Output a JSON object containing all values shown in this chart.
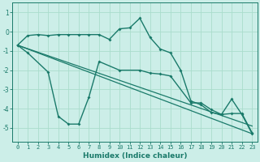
{
  "background_color": "#cceee8",
  "grid_color": "#aaddcc",
  "line_color": "#1a7a6a",
  "xlabel": "Humidex (Indice chaleur)",
  "xlim": [
    -0.5,
    23.5
  ],
  "ylim": [
    -5.7,
    1.5
  ],
  "yticks": [
    -5,
    -4,
    -3,
    -2,
    -1,
    0,
    1
  ],
  "xticks": [
    0,
    1,
    2,
    3,
    4,
    5,
    6,
    7,
    8,
    9,
    10,
    11,
    12,
    13,
    14,
    15,
    16,
    17,
    18,
    19,
    20,
    21,
    22,
    23
  ],
  "line1_x": [
    0,
    1,
    2,
    3,
    4,
    5,
    6,
    7,
    8,
    9,
    10,
    11,
    12,
    13,
    14,
    15,
    16,
    17,
    18,
    19,
    20,
    21,
    22,
    23
  ],
  "line1_y": [
    -0.7,
    -0.2,
    -0.15,
    -0.2,
    -0.15,
    -0.15,
    -0.15,
    -0.15,
    -0.15,
    -0.4,
    0.15,
    0.2,
    0.7,
    -0.3,
    -0.9,
    -1.1,
    -2.0,
    -3.6,
    -3.8,
    -4.2,
    -4.3,
    -3.5,
    -4.3,
    -5.3
  ],
  "line2_x": [
    0,
    1,
    3,
    4,
    5,
    6,
    7,
    8,
    10,
    12,
    13,
    14,
    15,
    17,
    18,
    19,
    20,
    21,
    22,
    23
  ],
  "line2_y": [
    -0.7,
    -1.1,
    -2.1,
    -4.4,
    -4.8,
    -4.8,
    -3.4,
    -1.55,
    -2.0,
    -2.0,
    -2.15,
    -2.2,
    -2.3,
    -3.7,
    -3.7,
    -4.05,
    -4.3,
    -4.25,
    -4.25,
    -5.25
  ],
  "line3_x": [
    0,
    23
  ],
  "line3_y": [
    -0.7,
    -5.3
  ],
  "line4_x": [
    0,
    23
  ],
  "line4_y": [
    -0.7,
    -4.9
  ]
}
